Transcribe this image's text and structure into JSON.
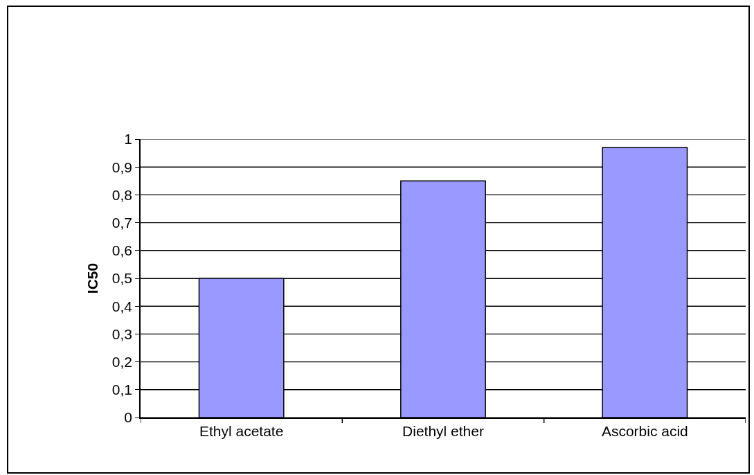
{
  "chart_data": {
    "type": "bar",
    "ylabel": "IC50",
    "categories": [
      "Ethyl acetate",
      "Diethyl ether",
      "Ascorbic acid"
    ],
    "values": [
      0.5,
      0.85,
      0.97
    ],
    "color": "#9999ff",
    "ylim": [
      0,
      1
    ],
    "yticks": [
      0,
      {
        "value": 0.1,
        "label": "0,1"
      },
      {
        "value": 0.2,
        "label": "0,2"
      },
      {
        "value": 0.3,
        "label": "0,3"
      },
      {
        "value": 0.4,
        "label": "0,4"
      },
      {
        "value": 0.5,
        "label": "0,5"
      },
      {
        "value": 0.6,
        "label": "0,6"
      },
      {
        "value": 0.7,
        "label": "0,7"
      },
      {
        "value": 0.8,
        "label": "0,8"
      },
      {
        "value": 0.9,
        "label": "0,9"
      },
      1
    ],
    "grid": "y"
  }
}
